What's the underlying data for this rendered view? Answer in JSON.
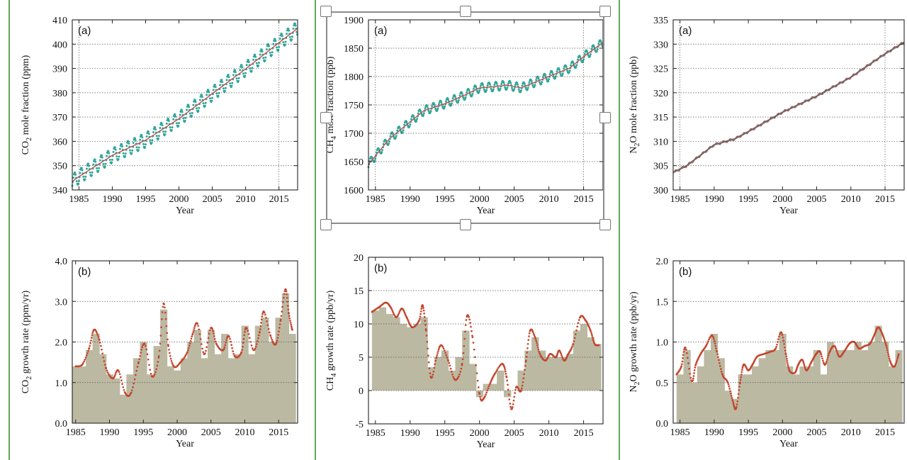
{
  "chart_data": [
    {
      "id": "co2_a",
      "type": "line",
      "panel_label": "(a)",
      "xlabel": "Year",
      "ylabel": "CO2 mole fraction (ppm)",
      "ylabel_main": "CO",
      "ylabel_sub": "2",
      "ylabel_rest": " mole fraction (ppm)",
      "xlim": [
        1984,
        2017.8
      ],
      "ylim": [
        340,
        410
      ],
      "xticks": [
        1985,
        1990,
        1995,
        2000,
        2005,
        2010,
        2015
      ],
      "yticks": [
        340,
        350,
        360,
        370,
        380,
        390,
        400,
        410
      ],
      "series": [
        {
          "x": [
            1984,
            1985,
            1990,
            1995,
            2000,
            2005,
            2010,
            2015,
            2017.8
          ],
          "y": [
            343.5,
            345.5,
            354.2,
            360.5,
            369.3,
            379.6,
            389.8,
            400.6,
            406.5
          ]
        }
      ],
      "seasonal_amplitude": 3.0,
      "colors": {
        "trend": "#c0504d",
        "monthly": "#2fa69a"
      }
    },
    {
      "id": "co2_b",
      "type": "area",
      "panel_label": "(b)",
      "xlabel": "Year",
      "ylabel": "CO2 growth rate (ppm/yr)",
      "ylabel_main": "CO",
      "ylabel_sub": "2",
      "ylabel_rest": " growth rate (ppm/yr)",
      "xlim": [
        1984.5,
        2017.8
      ],
      "ylim": [
        0,
        4
      ],
      "xticks": [
        1985,
        1990,
        1995,
        2000,
        2005,
        2010,
        2015
      ],
      "yticks": [
        0,
        1,
        2,
        3,
        4
      ],
      "ytick_labels": [
        "0.0",
        "1.0",
        "2.0",
        "3.0",
        "4.0"
      ],
      "annual": {
        "x": [
          1985,
          1986,
          1987,
          1988,
          1989,
          1990,
          1991,
          1992,
          1993,
          1994,
          1995,
          1996,
          1997,
          1998,
          1999,
          2000,
          2001,
          2002,
          2003,
          2004,
          2005,
          2006,
          2007,
          2008,
          2009,
          2010,
          2011,
          2012,
          2013,
          2014,
          2015,
          2016,
          2017
        ],
        "y": [
          1.4,
          1.4,
          1.8,
          2.2,
          1.7,
          1.2,
          1.1,
          0.7,
          1.2,
          1.6,
          2.0,
          1.2,
          1.9,
          2.8,
          1.4,
          1.3,
          1.6,
          2.0,
          2.3,
          1.6,
          2.3,
          1.7,
          2.2,
          1.6,
          1.7,
          2.4,
          1.7,
          2.4,
          2.6,
          2.0,
          2.6,
          3.2,
          2.2
        ]
      },
      "smooth": {
        "x": [
          1985,
          1986,
          1987,
          1987.7,
          1988.5,
          1989.5,
          1990.5,
          1991.3,
          1992.3,
          1993.2,
          1994.3,
          1995.2,
          1996.3,
          1997.3,
          1998.0,
          1998.7,
          1999.5,
          2000.5,
          2001.5,
          2002.3,
          2003.0,
          2004.0,
          2005.0,
          2005.8,
          2006.8,
          2007.6,
          2008.5,
          2009.5,
          2010.2,
          2011.3,
          2012.2,
          2012.8,
          2013.8,
          2014.6,
          2015.3,
          2016.0,
          2016.5,
          2017.0
        ],
        "y": [
          1.4,
          1.45,
          1.85,
          2.3,
          2.05,
          1.35,
          1.1,
          1.3,
          0.75,
          0.75,
          1.5,
          1.95,
          1.15,
          1.65,
          2.95,
          1.9,
          1.4,
          1.5,
          1.75,
          2.2,
          2.45,
          1.7,
          2.35,
          1.95,
          1.8,
          2.15,
          1.65,
          1.75,
          2.35,
          1.8,
          2.25,
          2.75,
          2.15,
          1.95,
          2.55,
          3.3,
          2.7,
          2.3
        ]
      },
      "colors": {
        "bars": "#bcb9a3",
        "smooth": "#c4452c"
      }
    },
    {
      "id": "ch4_a",
      "type": "line",
      "panel_label": "(a)",
      "xlabel": "Year",
      "ylabel": "CH4 mole fraction (ppb)",
      "ylabel_main": "CH",
      "ylabel_sub": "4",
      "ylabel_rest": " mole fraction (ppb)",
      "xlim": [
        1984,
        2017.8
      ],
      "ylim": [
        1600,
        1900
      ],
      "xticks": [
        1985,
        1990,
        1995,
        2000,
        2005,
        2010,
        2015
      ],
      "yticks": [
        1600,
        1650,
        1700,
        1750,
        1800,
        1850,
        1900
      ],
      "series": [
        {
          "x": [
            1984,
            1985,
            1987,
            1990,
            1992,
            1995,
            1998,
            2000,
            2002,
            2004,
            2006,
            2007,
            2010,
            2013,
            2015,
            2017.8
          ],
          "y": [
            1645,
            1660,
            1690,
            1720,
            1740,
            1752,
            1768,
            1780,
            1782,
            1785,
            1780,
            1785,
            1800,
            1815,
            1835,
            1860
          ]
        }
      ],
      "seasonal_amplitude": 8,
      "colors": {
        "trend": "#c0504d",
        "monthly": "#2fa69a"
      }
    },
    {
      "id": "ch4_b",
      "type": "area",
      "panel_label": "(b)",
      "xlabel": "Year",
      "ylabel": "CH4 growth rate (ppb/yr)",
      "ylabel_main": "CH",
      "ylabel_sub": "4",
      "ylabel_rest": " growth rate (ppb/yr)",
      "xlim": [
        1984,
        2017.8
      ],
      "ylim": [
        -5,
        20
      ],
      "xticks": [
        1985,
        1990,
        1995,
        2000,
        2005,
        2010,
        2015
      ],
      "yticks": [
        -5,
        0,
        5,
        10,
        15,
        20
      ],
      "ytick_labels": [
        "-5",
        "0",
        "5",
        "10",
        "15",
        "20"
      ],
      "annual": {
        "x": [
          1985,
          1986,
          1987,
          1988,
          1989,
          1990,
          1991,
          1992,
          1993,
          1994,
          1995,
          1996,
          1997,
          1998,
          1999,
          2000,
          2001,
          2002,
          2003,
          2004,
          2005,
          2006,
          2007,
          2008,
          2009,
          2010,
          2011,
          2012,
          2013,
          2014,
          2015,
          2016,
          2017
        ],
        "y": [
          12,
          12.5,
          11.5,
          11,
          10,
          9.5,
          10,
          11,
          3.5,
          5,
          6,
          3,
          5,
          9,
          4,
          -1,
          1,
          1,
          3,
          -1,
          0,
          3,
          6,
          8,
          6,
          5,
          5,
          5,
          5.5,
          9,
          10,
          8,
          7
        ]
      },
      "smooth": {
        "x": [
          1984.5,
          1985.5,
          1986.5,
          1987.2,
          1988.0,
          1988.8,
          1989.5,
          1990.3,
          1991.3,
          1991.8,
          1992.3,
          1993.0,
          1993.8,
          1994.5,
          1995.5,
          1996.5,
          1997.5,
          1998.2,
          1999.0,
          2000.0,
          2000.6,
          2001.5,
          2002.2,
          2003.3,
          2003.9,
          2004.6,
          2005.3,
          2006.0,
          2006.7,
          2007.3,
          2008.0,
          2008.7,
          2009.5,
          2010.2,
          2011.0,
          2011.5,
          2012.2,
          2012.8,
          2013.5,
          2014.5,
          2015.3,
          2016.0,
          2016.6,
          2017.2
        ],
        "y": [
          11.8,
          12.5,
          13.2,
          12.5,
          11.0,
          12.3,
          11.0,
          9.5,
          10.5,
          12.8,
          9.0,
          2.0,
          5.0,
          6.8,
          4.5,
          1.6,
          4.0,
          11.2,
          8.0,
          -0.5,
          -1.2,
          1.0,
          2.5,
          4.0,
          2.0,
          -2.8,
          0.5,
          0.0,
          4.5,
          9.0,
          8.0,
          5.5,
          4.5,
          5.5,
          5.0,
          6.0,
          4.5,
          5.5,
          7.0,
          11.0,
          10.5,
          9.0,
          7.0,
          6.8
        ]
      },
      "colors": {
        "bars": "#bcb9a3",
        "smooth": "#c4452c"
      }
    },
    {
      "id": "n2o_a",
      "type": "line",
      "panel_label": "(a)",
      "xlabel": "Year",
      "ylabel": "N2O mole fraction (ppb)",
      "ylabel_main": "N",
      "ylabel_sub": "2",
      "ylabel_rest": "O mole fraction (ppb)",
      "xlim": [
        1984,
        2017.8
      ],
      "ylim": [
        300,
        335
      ],
      "xticks": [
        1985,
        1990,
        1995,
        2000,
        2005,
        2010,
        2015
      ],
      "yticks": [
        300,
        305,
        310,
        315,
        320,
        325,
        330,
        335
      ],
      "series": [
        {
          "x": [
            1984,
            1986,
            1990,
            1993,
            1995,
            2000,
            2005,
            2010,
            2015,
            2017.8
          ],
          "y": [
            303.6,
            305,
            309.3,
            310.5,
            312,
            316,
            319.3,
            323.2,
            328,
            330.4
          ]
        }
      ],
      "seasonal_amplitude": 0.3,
      "colors": {
        "trend": "#6d6d6d",
        "monthly": "#c0504d"
      }
    },
    {
      "id": "n2o_b",
      "type": "area",
      "panel_label": "(b)",
      "xlabel": "Year",
      "ylabel": "N2O growth rate (ppb/yr)",
      "ylabel_main": "N",
      "ylabel_sub": "2",
      "ylabel_rest": "O growth rate (ppb/yr)",
      "xlim": [
        1984,
        2017.8
      ],
      "ylim": [
        0,
        2
      ],
      "xticks": [
        1985,
        1990,
        1995,
        2000,
        2005,
        2010,
        2015
      ],
      "yticks": [
        0,
        0.5,
        1,
        1.5,
        2
      ],
      "ytick_labels": [
        "0.0",
        "0.5",
        "1.0",
        "1.5",
        "2.0"
      ],
      "annual": {
        "x": [
          1985,
          1986,
          1987,
          1988,
          1989,
          1990,
          1991,
          1992,
          1993,
          1994,
          1995,
          1996,
          1997,
          1998,
          1999,
          2000,
          2001,
          2002,
          2003,
          2004,
          2005,
          2006,
          2007,
          2008,
          2009,
          2010,
          2011,
          2012,
          2013,
          2014,
          2015,
          2016,
          2017
        ],
        "y": [
          0.6,
          0.9,
          0.5,
          0.7,
          0.9,
          1.1,
          0.8,
          0.4,
          0.3,
          0.6,
          0.6,
          0.7,
          0.8,
          0.9,
          0.9,
          1.1,
          0.7,
          0.6,
          0.7,
          0.7,
          0.9,
          0.6,
          1.0,
          0.9,
          0.9,
          0.9,
          1.0,
          0.9,
          1.0,
          1.2,
          1.0,
          0.7,
          0.9
        ]
      },
      "smooth": {
        "x": [
          1984.5,
          1985.2,
          1985.8,
          1986.7,
          1987.3,
          1988.0,
          1988.8,
          1989.7,
          1990.4,
          1991.2,
          1992.0,
          1992.7,
          1993.2,
          1993.8,
          1994.3,
          1995.0,
          1995.6,
          1996.3,
          1997.2,
          1998.2,
          1999.0,
          1999.8,
          2000.5,
          2001.0,
          2001.8,
          2002.3,
          2002.9,
          2003.5,
          2004.2,
          2004.9,
          2005.5,
          2006.2,
          2006.9,
          2007.6,
          2008.3,
          2009.0,
          2009.8,
          2010.5,
          2011.2,
          2012.0,
          2012.8,
          2013.5,
          2014.0,
          2014.6,
          2015.2,
          2015.8,
          2016.4,
          2017.0
        ],
        "y": [
          0.6,
          0.7,
          0.93,
          0.52,
          0.72,
          0.85,
          0.95,
          1.08,
          0.88,
          0.6,
          0.5,
          0.28,
          0.18,
          0.5,
          0.72,
          0.65,
          0.72,
          0.82,
          0.85,
          0.88,
          0.92,
          1.12,
          0.85,
          0.65,
          0.62,
          0.72,
          0.78,
          0.65,
          0.75,
          0.85,
          0.88,
          0.72,
          0.88,
          0.95,
          0.82,
          0.88,
          0.98,
          1.0,
          0.92,
          0.95,
          0.98,
          1.1,
          1.18,
          1.1,
          0.95,
          0.75,
          0.7,
          0.85
        ]
      },
      "colors": {
        "bars": "#bcb9a3",
        "smooth": "#c4452c"
      }
    }
  ]
}
